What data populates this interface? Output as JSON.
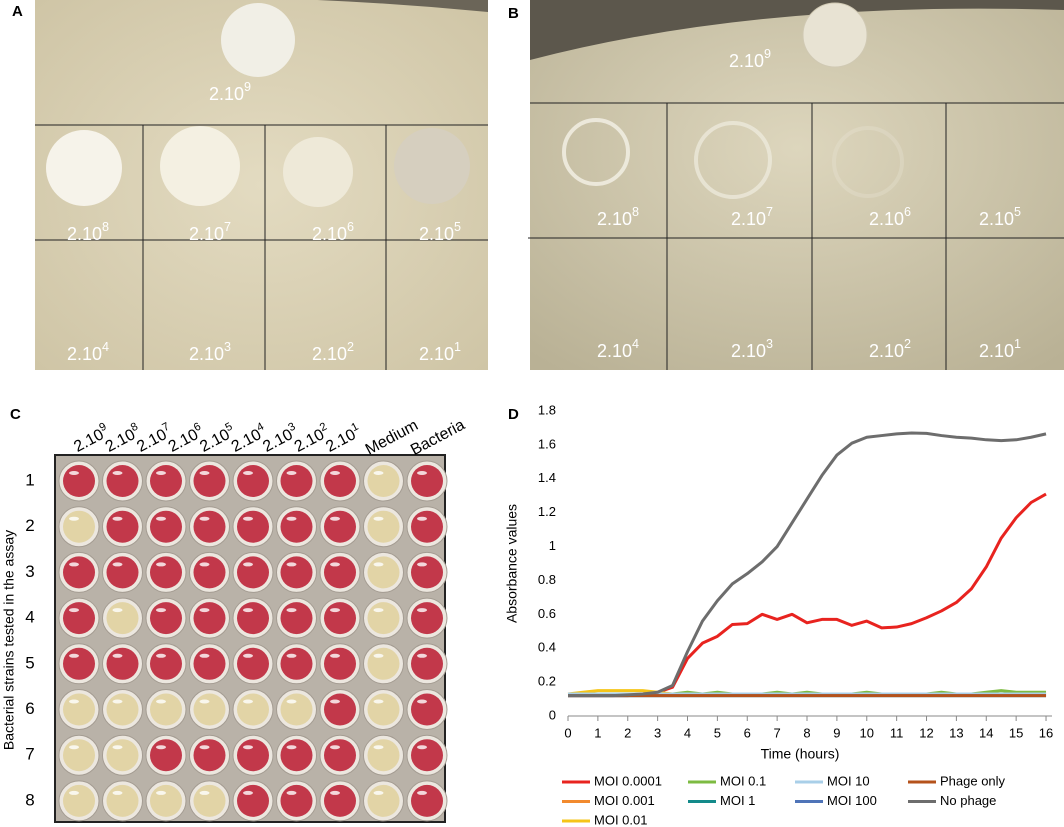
{
  "panels": [
    {
      "label": "A",
      "dilutions": [
        {
          "base": "2.10",
          "exp": "9"
        },
        {
          "base": "2.10",
          "exp": "8"
        },
        {
          "base": "2.10",
          "exp": "7"
        },
        {
          "base": "2.10",
          "exp": "6"
        },
        {
          "base": "2.10",
          "exp": "5"
        },
        {
          "base": "2.10",
          "exp": "4"
        },
        {
          "base": "2.10",
          "exp": "3"
        },
        {
          "base": "2.10",
          "exp": "2"
        },
        {
          "base": "2.10",
          "exp": "1"
        }
      ]
    },
    {
      "label": "B",
      "dilutions": [
        {
          "base": "2.10",
          "exp": "9"
        },
        {
          "base": "2.10",
          "exp": "8"
        },
        {
          "base": "2.10",
          "exp": "7"
        },
        {
          "base": "2.10",
          "exp": "6"
        },
        {
          "base": "2.10",
          "exp": "5"
        },
        {
          "base": "2.10",
          "exp": "4"
        },
        {
          "base": "2.10",
          "exp": "3"
        },
        {
          "base": "2.10",
          "exp": "2"
        },
        {
          "base": "2.10",
          "exp": "1"
        }
      ]
    },
    {
      "label": "C",
      "dilutions": [
        {
          "base": "2.10",
          "exp": "9"
        },
        {
          "base": "2.10",
          "exp": "8"
        },
        {
          "base": "2.10",
          "exp": "7"
        },
        {
          "base": "2.10",
          "exp": "6"
        },
        {
          "base": "2.10",
          "exp": "5"
        },
        {
          "base": "2.10",
          "exp": "4"
        },
        {
          "base": "2.10",
          "exp": "3"
        },
        {
          "base": "2.10",
          "exp": "2"
        },
        {
          "base": "2.10",
          "exp": "1"
        }
      ],
      "extra_headers": [
        "Medium",
        "Bacteria"
      ],
      "row_labels": [
        "1",
        "2",
        "3",
        "4",
        "5",
        "6",
        "7",
        "8"
      ],
      "y_axis_label": "Bacterial strains tested in the assay"
    }
  ],
  "chart_data": {
    "type": "line",
    "panel_label": "D",
    "x_label": "Time (hours)",
    "y_label": "Absorbance values",
    "x": [
      0,
      0.5,
      1,
      1.5,
      2,
      2.5,
      3,
      3.5,
      4,
      4.5,
      5,
      5.5,
      6,
      6.5,
      7,
      7.5,
      8,
      8.5,
      9,
      9.5,
      10,
      10.5,
      11,
      11.5,
      12,
      12.5,
      13,
      13.5,
      14,
      14.5,
      15,
      15.5,
      16
    ],
    "xlim": [
      0,
      16.2
    ],
    "xticks": [
      0,
      1,
      2,
      3,
      4,
      5,
      6,
      7,
      8,
      9,
      10,
      11,
      12,
      13,
      14,
      15,
      16
    ],
    "ylim": [
      0,
      1.8
    ],
    "yticks": [
      0,
      0.2,
      0.4,
      0.6,
      0.8,
      1,
      1.2,
      1.4,
      1.6,
      1.8
    ],
    "series": [
      {
        "name": "MOI 0.0001",
        "color": "#e8231f",
        "values": [
          0.12,
          0.12,
          0.12,
          0.12,
          0.12,
          0.13,
          0.14,
          0.17,
          0.34,
          0.43,
          0.47,
          0.54,
          0.545,
          0.6,
          0.57,
          0.6,
          0.55,
          0.57,
          0.57,
          0.535,
          0.56,
          0.52,
          0.525,
          0.545,
          0.58,
          0.62,
          0.67,
          0.75,
          0.88,
          1.05,
          1.17,
          1.26,
          1.31
        ]
      },
      {
        "name": "MOI 0.001",
        "color": "#f28a2e",
        "values": [
          0.13,
          0.13,
          0.13,
          0.13,
          0.13,
          0.13,
          0.13,
          0.13,
          0.13,
          0.13,
          0.13,
          0.13,
          0.13,
          0.13,
          0.13,
          0.13,
          0.13,
          0.13,
          0.13,
          0.13,
          0.13,
          0.13,
          0.13,
          0.13,
          0.13,
          0.13,
          0.13,
          0.13,
          0.13,
          0.13,
          0.13,
          0.13,
          0.13
        ]
      },
      {
        "name": "MOI 0.01",
        "color": "#f5c518",
        "values": [
          0.13,
          0.14,
          0.15,
          0.15,
          0.15,
          0.15,
          0.14,
          0.13,
          0.13,
          0.13,
          0.13,
          0.13,
          0.13,
          0.13,
          0.13,
          0.13,
          0.13,
          0.13,
          0.13,
          0.13,
          0.13,
          0.13,
          0.13,
          0.13,
          0.13,
          0.13,
          0.13,
          0.13,
          0.13,
          0.13,
          0.13,
          0.13,
          0.13
        ]
      },
      {
        "name": "MOI 0.1",
        "color": "#7dbb42",
        "values": [
          0.13,
          0.13,
          0.13,
          0.13,
          0.13,
          0.13,
          0.13,
          0.13,
          0.14,
          0.13,
          0.14,
          0.13,
          0.13,
          0.13,
          0.14,
          0.13,
          0.14,
          0.13,
          0.13,
          0.13,
          0.14,
          0.13,
          0.13,
          0.13,
          0.13,
          0.14,
          0.13,
          0.13,
          0.14,
          0.15,
          0.14,
          0.14,
          0.14
        ]
      },
      {
        "name": "MOI 1",
        "color": "#138a8a",
        "values": [
          0.12,
          0.12,
          0.12,
          0.12,
          0.12,
          0.12,
          0.12,
          0.12,
          0.12,
          0.12,
          0.12,
          0.12,
          0.12,
          0.12,
          0.12,
          0.12,
          0.12,
          0.12,
          0.12,
          0.12,
          0.12,
          0.12,
          0.12,
          0.12,
          0.12,
          0.12,
          0.12,
          0.12,
          0.12,
          0.12,
          0.12,
          0.12,
          0.12
        ]
      },
      {
        "name": "MOI 10",
        "color": "#a9cfe8",
        "values": [
          0.13,
          0.13,
          0.13,
          0.13,
          0.13,
          0.13,
          0.13,
          0.13,
          0.13,
          0.13,
          0.13,
          0.13,
          0.13,
          0.13,
          0.13,
          0.13,
          0.13,
          0.13,
          0.13,
          0.13,
          0.13,
          0.13,
          0.13,
          0.13,
          0.13,
          0.13,
          0.13,
          0.13,
          0.13,
          0.13,
          0.13,
          0.13,
          0.13
        ]
      },
      {
        "name": "MOI 100",
        "color": "#4f74b8",
        "values": [
          0.12,
          0.12,
          0.12,
          0.12,
          0.12,
          0.12,
          0.12,
          0.12,
          0.12,
          0.12,
          0.12,
          0.12,
          0.12,
          0.12,
          0.12,
          0.12,
          0.12,
          0.12,
          0.12,
          0.12,
          0.12,
          0.12,
          0.12,
          0.12,
          0.12,
          0.12,
          0.12,
          0.12,
          0.12,
          0.12,
          0.12,
          0.12,
          0.12
        ]
      },
      {
        "name": "Phage only",
        "color": "#b5521b",
        "values": [
          0.12,
          0.12,
          0.12,
          0.12,
          0.12,
          0.12,
          0.12,
          0.12,
          0.12,
          0.12,
          0.12,
          0.12,
          0.12,
          0.12,
          0.12,
          0.12,
          0.12,
          0.12,
          0.12,
          0.12,
          0.12,
          0.12,
          0.12,
          0.12,
          0.12,
          0.12,
          0.12,
          0.12,
          0.12,
          0.12,
          0.12,
          0.12,
          0.12
        ]
      },
      {
        "name": "No phage",
        "color": "#6d6d6d",
        "values": [
          0.12,
          0.12,
          0.12,
          0.12,
          0.125,
          0.13,
          0.14,
          0.18,
          0.38,
          0.56,
          0.68,
          0.78,
          0.84,
          0.91,
          1.0,
          1.14,
          1.28,
          1.42,
          1.54,
          1.61,
          1.645,
          1.655,
          1.665,
          1.67,
          1.668,
          1.655,
          1.645,
          1.64,
          1.63,
          1.625,
          1.63,
          1.645,
          1.665
        ]
      }
    ]
  }
}
